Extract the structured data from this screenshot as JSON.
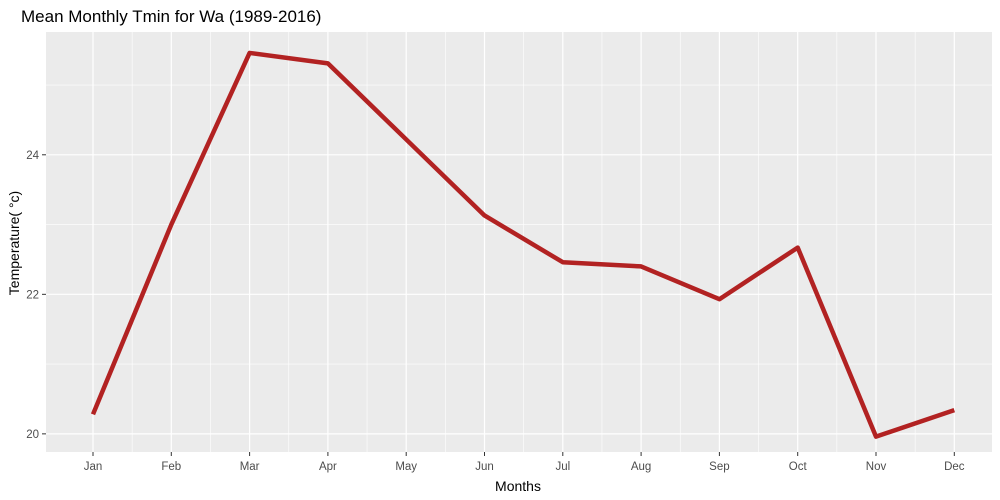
{
  "chart_data": {
    "type": "line",
    "title": "Mean Monthly Tmin for Wa (1989-2016)",
    "xlabel": "Months",
    "ylabel": "Temperature( °c)",
    "categories": [
      "Jan",
      "Feb",
      "Mar",
      "Apr",
      "May",
      "Jun",
      "Jul",
      "Aug",
      "Sep",
      "Oct",
      "Nov",
      "Dec"
    ],
    "series": [
      {
        "values": [
          20.28,
          23.0,
          25.46,
          25.31,
          24.22,
          23.13,
          22.46,
          22.4,
          21.93,
          22.67,
          19.96,
          20.34
        ],
        "color": "#b22222"
      }
    ],
    "ylim": [
      19.74,
      25.76
    ],
    "yticks": [
      20,
      22,
      24
    ],
    "yticks_minor": [
      21,
      23,
      25
    ],
    "ytick_labels": [
      "20",
      "22",
      "24"
    ],
    "grid": true,
    "panel_background": "#ebebeb",
    "grid_color": "#ffffff"
  }
}
